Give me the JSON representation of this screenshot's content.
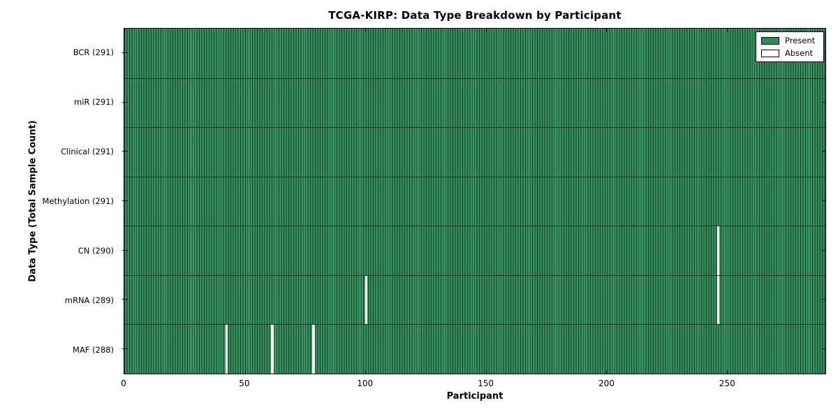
{
  "chart_data": {
    "type": "heatmap",
    "title": "TCGA-KIRP: Data Type Breakdown by Participant",
    "xlabel": "Participant",
    "ylabel": "Data Type (Total Sample Count)",
    "n_participants": 291,
    "x_range": [
      0,
      291
    ],
    "x_ticks": [
      0,
      50,
      100,
      150,
      200,
      250
    ],
    "grid": false,
    "legend_position": "upper right",
    "rows": [
      {
        "name": "BCR",
        "label": "BCR (291)",
        "total": 291,
        "absent_participants": []
      },
      {
        "name": "miR",
        "label": "miR (291)",
        "total": 291,
        "absent_participants": []
      },
      {
        "name": "Clinical",
        "label": "Clinical (291)",
        "total": 291,
        "absent_participants": []
      },
      {
        "name": "Methylation",
        "label": "Methylation (291)",
        "total": 291,
        "absent_participants": []
      },
      {
        "name": "CN",
        "label": "CN (290)",
        "total": 290,
        "absent_participants": [
          246
        ]
      },
      {
        "name": "mRNA",
        "label": "mRNA (289)",
        "total": 289,
        "absent_participants": [
          100,
          246
        ]
      },
      {
        "name": "MAF",
        "label": "MAF (288)",
        "total": 288,
        "absent_participants": [
          42,
          61,
          78
        ]
      }
    ],
    "legend": [
      {
        "label": "Present",
        "color": "#2e8a57"
      },
      {
        "label": "Absent",
        "color": "#ffffff"
      }
    ],
    "colors": {
      "present": "#2e8a57",
      "present_edge": "#16402a",
      "absent": "#ffffff",
      "spine": "#000000",
      "background": "#ffffff"
    }
  }
}
